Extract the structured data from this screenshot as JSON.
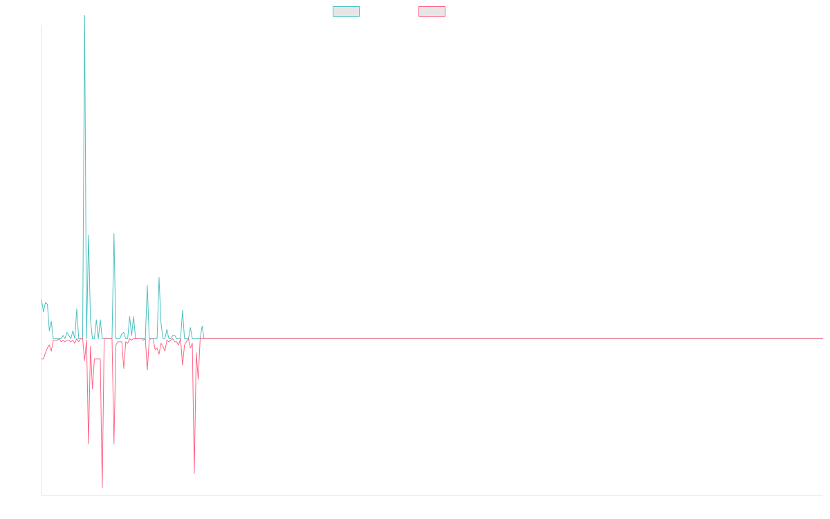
{
  "chart_data": {
    "type": "line",
    "title": "",
    "xlabel": "",
    "ylabel": "",
    "grid": false,
    "legend_placement": "top-center",
    "ylim": [
      -1.0,
      2.0
    ],
    "x_count": 400,
    "series": [
      {
        "name": "",
        "color": "#4bc0c0",
        "fill": "#e6e6e6",
        "values": [
          0.25,
          0.17,
          0.23,
          0.22,
          0.05,
          0.11,
          0.0,
          0.0,
          0.0,
          0.0,
          0.0,
          0.02,
          0.0,
          0.04,
          0.02,
          0.0,
          0.05,
          0.0,
          0.19,
          0.0,
          0.0,
          0.0,
          2.06,
          0.0,
          0.66,
          0.12,
          0.0,
          0.0,
          0.12,
          0.0,
          0.12,
          0.0,
          0.0,
          0.0,
          0.0,
          0.0,
          0.0,
          0.67,
          0.0,
          0.0,
          0.0,
          0.03,
          0.04,
          0.0,
          0.0,
          0.14,
          0.02,
          0.14,
          0.0,
          0.0,
          0.0,
          0.0,
          0.0,
          0.0,
          0.34,
          0.0,
          0.0,
          0.0,
          0.0,
          0.0,
          0.39,
          0.1,
          0.0,
          0.0,
          0.06,
          0.0,
          0.0,
          0.02,
          0.02,
          0.0,
          0.0,
          0.0,
          0.18,
          0.0,
          0.0,
          0.0,
          0.07,
          0.0,
          0.0,
          0.0,
          0.0,
          0.0,
          0.08,
          0.0,
          0.0
        ]
      },
      {
        "name": "",
        "color": "#ff6384",
        "fill": "#e6e6e6",
        "values": [
          -0.13,
          -0.13,
          -0.09,
          -0.06,
          -0.04,
          -0.08,
          -0.01,
          -0.01,
          -0.01,
          0.0,
          -0.02,
          -0.01,
          -0.02,
          -0.01,
          -0.01,
          -0.02,
          -0.01,
          -0.03,
          0.0,
          -0.02,
          0.0,
          0.0,
          -0.14,
          -0.01,
          -0.67,
          -0.05,
          -0.32,
          -0.13,
          -0.13,
          -0.13,
          -0.13,
          -0.95,
          0.0,
          0.0,
          0.0,
          0.0,
          0.0,
          -0.67,
          -0.04,
          -0.02,
          -0.02,
          -0.02,
          -0.19,
          -0.02,
          -0.03,
          0.0,
          -0.01,
          0.0,
          0.0,
          0.0,
          0.0,
          0.0,
          -0.01,
          0.0,
          -0.2,
          -0.01,
          0.0,
          0.0,
          -0.07,
          -0.06,
          -0.1,
          -0.03,
          -0.05,
          -0.08,
          -0.01,
          -0.02,
          -0.01,
          0.0,
          -0.02,
          -0.02,
          -0.04,
          0.0,
          -0.17,
          -0.04,
          -0.02,
          0.0,
          -0.06,
          -0.03,
          -0.86,
          -0.09,
          -0.26,
          0.0,
          0.0,
          0.0,
          0.0
        ]
      }
    ]
  }
}
